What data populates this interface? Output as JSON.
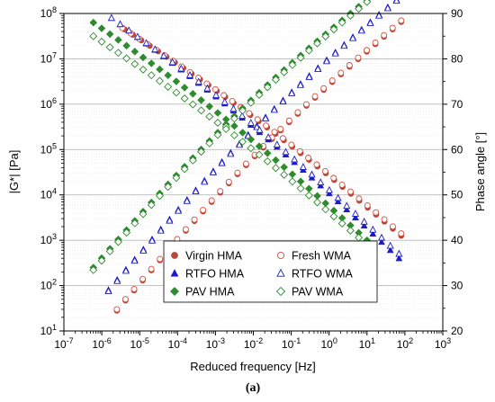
{
  "chart_data": {
    "type": "scatter",
    "caption": "(a)",
    "xlabel": "Reduced frequency [Hz]",
    "ylabel_left": "|G*| [Pa]",
    "ylabel_right": "Phase angle [°]",
    "x_scale": "log",
    "y_left_scale": "log",
    "xlim": [
      1e-07,
      1000
    ],
    "ylim_left": [
      10,
      100000000
    ],
    "ylim_right": [
      20,
      90
    ],
    "x_tick_labels": [
      "10-7",
      "10-6",
      "10-5",
      "10-4",
      "10-3",
      "10-2",
      "10-1",
      "100",
      "101",
      "102",
      "103"
    ],
    "y_left_tick_labels": [
      "101",
      "102",
      "103",
      "104",
      "105",
      "106",
      "107",
      "108"
    ],
    "y_right_tick_labels": [
      "20",
      "30",
      "40",
      "50",
      "60",
      "70",
      "80",
      "90"
    ],
    "grid": "horizontal",
    "legend_position": "bottom-center",
    "series": [
      {
        "name": "Virgin HMA",
        "marker": "circle",
        "filled": true,
        "color": "#b8473a",
        "modulus": {
          "x": [
            2.5e-06,
            80
          ],
          "y": [
            28,
            65000000
          ]
        },
        "phase": {
          "x": [
            4e-06,
            80
          ],
          "y": [
            86.5,
            41
          ]
        }
      },
      {
        "name": "Fresh WMA",
        "marker": "circle",
        "filled": false,
        "color": "#d4513d",
        "modulus": {
          "x": [
            2.5e-06,
            80
          ],
          "y": [
            30,
            70000000
          ]
        },
        "phase": {
          "x": [
            3.5e-06,
            80
          ],
          "y": [
            86.8,
            41.5
          ]
        }
      },
      {
        "name": "RTFO HMA",
        "marker": "triangle",
        "filled": true,
        "color": "#1c1cc8",
        "modulus": {
          "x": [
            1.5e-06,
            60
          ],
          "y": [
            80,
            200000000
          ]
        },
        "phase": {
          "x": [
            1.8e-06,
            70
          ],
          "y": [
            89,
            36
          ]
        }
      },
      {
        "name": "RTFO WMA",
        "marker": "triangle",
        "filled": false,
        "color": "#1c1cc8",
        "modulus": {
          "x": [
            1.5e-06,
            60
          ],
          "y": [
            75,
            190000000
          ]
        },
        "phase": {
          "x": [
            1.8e-06,
            70
          ],
          "y": [
            89,
            37
          ]
        }
      },
      {
        "name": "PAV HMA",
        "marker": "diamond",
        "filled": true,
        "color": "#2e8b2e",
        "modulus": {
          "x": [
            6e-07,
            10
          ],
          "y": [
            250,
            200000000
          ]
        },
        "phase": {
          "x": [
            6e-07,
            10
          ],
          "y": [
            88,
            40
          ]
        }
      },
      {
        "name": "PAV WMA",
        "marker": "diamond",
        "filled": false,
        "color": "#2e8b2e",
        "modulus": {
          "x": [
            6e-07,
            10
          ],
          "y": [
            220,
            180000000
          ]
        },
        "phase": {
          "x": [
            6e-07,
            10
          ],
          "y": [
            85,
            39
          ]
        }
      }
    ]
  }
}
